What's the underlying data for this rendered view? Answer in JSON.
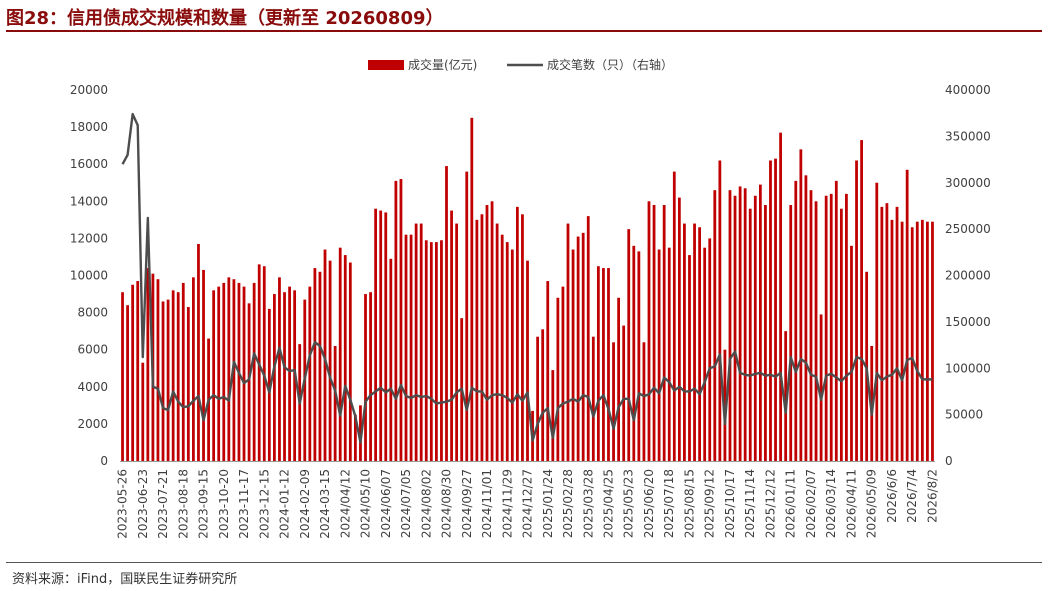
{
  "figure": {
    "title": "图28：信用债成交规模和数量（更新至 20260809）",
    "source": "资料来源：iFind，国联民生证券研究所"
  },
  "colors": {
    "bar": "#c00000",
    "line": "#4d4d4d",
    "title": "#8a0b0b"
  },
  "chart_data": {
    "type": "bar",
    "combo": "bar + line (secondary axis)",
    "legend_position": "top-center",
    "grid": false,
    "y_left": {
      "min": 0,
      "max": 20000,
      "ticks": [
        0,
        2000,
        4000,
        6000,
        8000,
        10000,
        12000,
        14000,
        16000,
        18000,
        20000
      ]
    },
    "y_right": {
      "min": 0,
      "max": 400000,
      "ticks": [
        0,
        50000,
        100000,
        150000,
        200000,
        250000,
        300000,
        350000,
        400000
      ]
    },
    "x_tick_labels": [
      "2023-05-26",
      "2023-06-23",
      "2023-07-21",
      "2023-08-18",
      "2023-09-15",
      "2023-10-20",
      "2023-11-17",
      "2023-12-15",
      "2024-01-12",
      "2024-02-09",
      "2024-03-15",
      "2024/04/12",
      "2024/05/10",
      "2024/06/07",
      "2024/07/05",
      "2024/08/02",
      "2024/08/30",
      "2024/09/27",
      "2024/11/01",
      "2024/11/29",
      "2024/12/27",
      "2025/01/24",
      "2025/02/28",
      "2025/03/28",
      "2025/04/25",
      "2025/05/23",
      "2025/06/20",
      "2025/07/18",
      "2025/08/15",
      "2025/09/12",
      "2025/10/17",
      "2025/11/14",
      "2025/12/12",
      "2026/01/11",
      "2026/02/07",
      "2026/03/14",
      "2026/04/11",
      "2026/05/09",
      "2026/6/6",
      "2026/7/4",
      "2026/8/2"
    ],
    "series": [
      {
        "name": "成交量(亿元)",
        "kind": "bar",
        "axis": "left",
        "values": [
          9100,
          8400,
          9500,
          9700,
          5300,
          10400,
          10100,
          9800,
          8600,
          8700,
          9200,
          9100,
          9600,
          8300,
          9900,
          11700,
          10300,
          6600,
          9200,
          9400,
          9600,
          9900,
          9800,
          9600,
          9400,
          8500,
          9600,
          10600,
          10500,
          8200,
          9000,
          9900,
          9100,
          9400,
          9200,
          6300,
          8700,
          9400,
          10400,
          10200,
          11400,
          10800,
          6200,
          11500,
          11100,
          10700,
          2500,
          3000,
          9000,
          9100,
          13600,
          13500,
          13400,
          10900,
          15100,
          15200,
          12200,
          12200,
          12800,
          12800,
          11900,
          11800,
          11800,
          11900,
          15900,
          13500,
          12800,
          7700,
          15600,
          18500,
          13000,
          13300,
          13800,
          14000,
          12800,
          12200,
          11800,
          11400,
          13700,
          13300,
          10800,
          2700,
          6700,
          7100,
          9700,
          4900,
          8800,
          9400,
          12800,
          11400,
          12100,
          12300,
          13200,
          6700,
          10500,
          10400,
          10400,
          6400,
          8800,
          7300,
          12500,
          11600,
          11300,
          6400,
          14000,
          13800,
          11400,
          13800,
          11500,
          15600,
          14200,
          12800,
          11100,
          12800,
          12600,
          11500,
          12000,
          14600,
          16200,
          6000,
          14600,
          14300,
          14800,
          14700,
          13600,
          14300,
          14900,
          13800,
          16200,
          16300,
          17700,
          7000,
          13800,
          15100,
          16800,
          15400,
          14600,
          14000,
          7900,
          14300,
          14400,
          15100,
          13600,
          14400,
          11600,
          16200,
          17300,
          10200,
          6200,
          15000,
          13700,
          13900,
          13000,
          13700,
          12900,
          15700,
          12600,
          12900,
          13000,
          12900,
          12900
        ]
      },
      {
        "name": "成交笔数（只）（右轴）",
        "kind": "line",
        "axis": "right",
        "values": [
          320000,
          330000,
          374000,
          362000,
          112000,
          262000,
          80000,
          78000,
          57000,
          55000,
          75000,
          64000,
          58000,
          59000,
          65000,
          70000,
          44000,
          66000,
          71000,
          67000,
          69000,
          65000,
          107000,
          95000,
          84000,
          88000,
          116000,
          104000,
          92000,
          74000,
          102000,
          122000,
          101000,
          97000,
          98000,
          62000,
          89000,
          114000,
          128000,
          124000,
          110000,
          90000,
          76000,
          49000,
          81000,
          66000,
          48000,
          20000,
          64000,
          71000,
          75000,
          79000,
          74000,
          78000,
          67000,
          82000,
          70000,
          68000,
          71000,
          69000,
          70000,
          67000,
          62000,
          63000,
          64000,
          66000,
          74000,
          78000,
          55000,
          79000,
          75000,
          75000,
          66000,
          71000,
          72000,
          71000,
          68000,
          63000,
          72000,
          65000,
          74000,
          22000,
          40000,
          52000,
          57000,
          25000,
          57000,
          62000,
          64000,
          67000,
          64000,
          71000,
          69000,
          48000,
          65000,
          71000,
          56000,
          35000,
          58000,
          67000,
          67000,
          44000,
          73000,
          70000,
          72000,
          79000,
          73000,
          90000,
          85000,
          76000,
          80000,
          75000,
          75000,
          78000,
          72000,
          85000,
          100000,
          102000,
          115000,
          40000,
          110000,
          118000,
          95000,
          93000,
          92000,
          94000,
          95000,
          92000,
          93000,
          91000,
          95000,
          52000,
          112000,
          96000,
          110000,
          106000,
          93000,
          91000,
          66000,
          92000,
          94000,
          90000,
          86000,
          92000,
          96000,
          112000,
          110000,
          100000,
          50000,
          95000,
          87000,
          91000,
          93000,
          100000,
          87000,
          109000,
          111000,
          97000,
          88000,
          88000,
          88000
        ]
      }
    ]
  }
}
